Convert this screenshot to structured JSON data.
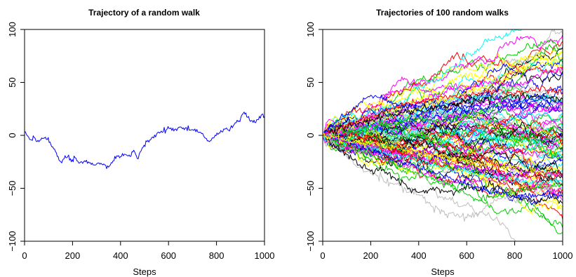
{
  "chart_data": [
    {
      "type": "line",
      "title": "Trajectory of a random walk",
      "xlabel": "Steps",
      "ylabel": "",
      "xlim": [
        0,
        1000
      ],
      "ylim": [
        -100,
        100
      ],
      "x_ticks": [
        "0",
        "200",
        "400",
        "600",
        "800",
        "1000"
      ],
      "y_ticks": [
        "−100",
        "−50",
        "0",
        "50",
        "100"
      ],
      "grid": false,
      "series": [
        {
          "color": "#0000FF",
          "points": [
            [
              0,
              3
            ],
            [
              10,
              0
            ],
            [
              25,
              -4
            ],
            [
              40,
              -2
            ],
            [
              60,
              -6
            ],
            [
              75,
              -3
            ],
            [
              95,
              -4
            ],
            [
              110,
              -9
            ],
            [
              125,
              -13
            ],
            [
              140,
              -20
            ],
            [
              155,
              -26
            ],
            [
              165,
              -22
            ],
            [
              180,
              -20
            ],
            [
              195,
              -25
            ],
            [
              210,
              -21
            ],
            [
              230,
              -26
            ],
            [
              250,
              -24
            ],
            [
              270,
              -26
            ],
            [
              290,
              -28
            ],
            [
              310,
              -26
            ],
            [
              330,
              -27
            ],
            [
              350,
              -30
            ],
            [
              365,
              -26
            ],
            [
              380,
              -22
            ],
            [
              400,
              -20
            ],
            [
              420,
              -18
            ],
            [
              440,
              -20
            ],
            [
              455,
              -14
            ],
            [
              470,
              -22
            ],
            [
              490,
              -12
            ],
            [
              510,
              -6
            ],
            [
              530,
              -2
            ],
            [
              550,
              1
            ],
            [
              570,
              4
            ],
            [
              590,
              5
            ],
            [
              610,
              7
            ],
            [
              630,
              6
            ],
            [
              650,
              8
            ],
            [
              670,
              7
            ],
            [
              690,
              5
            ],
            [
              710,
              6
            ],
            [
              730,
              3
            ],
            [
              750,
              -2
            ],
            [
              770,
              -6
            ],
            [
              790,
              -2
            ],
            [
              810,
              2
            ],
            [
              830,
              6
            ],
            [
              850,
              5
            ],
            [
              870,
              9
            ],
            [
              890,
              13
            ],
            [
              905,
              19
            ],
            [
              915,
              22
            ],
            [
              930,
              17
            ],
            [
              945,
              14
            ],
            [
              960,
              12
            ],
            [
              975,
              15
            ],
            [
              990,
              20
            ],
            [
              1000,
              18
            ]
          ]
        }
      ]
    },
    {
      "type": "line",
      "title": "Trajectories of 100 random walks",
      "xlabel": "Steps",
      "ylabel": "",
      "xlim": [
        0,
        1000
      ],
      "ylim": [
        -100,
        100
      ],
      "x_ticks": [
        "0",
        "200",
        "400",
        "600",
        "800",
        "1000"
      ],
      "y_ticks": [
        "−100",
        "−50",
        "0",
        "50",
        "100"
      ],
      "grid": false,
      "series_count": 100,
      "colors": [
        "#000000",
        "#FF0000",
        "#00CD00",
        "#0000FF",
        "#00FFFF",
        "#FF00FF",
        "#FFFF00",
        "#BEBEBE"
      ],
      "series": [
        {
          "color": "#00CD00",
          "points": [
            [
              0,
              0
            ],
            [
              100,
              3
            ],
            [
              200,
              8
            ],
            [
              300,
              12
            ],
            [
              400,
              16
            ],
            [
              500,
              14
            ],
            [
              600,
              18
            ],
            [
              700,
              24
            ],
            [
              750,
              34
            ],
            [
              800,
              48
            ],
            [
              850,
              62
            ],
            [
              900,
              74
            ],
            [
              940,
              84
            ],
            [
              970,
              80
            ],
            [
              1000,
              68
            ]
          ]
        },
        {
          "color": "#FFFF00",
          "points": [
            [
              0,
              0
            ],
            [
              100,
              6
            ],
            [
              200,
              12
            ],
            [
              300,
              20
            ],
            [
              400,
              26
            ],
            [
              500,
              34
            ],
            [
              600,
              40
            ],
            [
              700,
              48
            ],
            [
              800,
              56
            ],
            [
              860,
              68
            ],
            [
              900,
              74
            ],
            [
              950,
              72
            ],
            [
              1000,
              78
            ]
          ]
        },
        {
          "color": "#FFFF00",
          "points": [
            [
              0,
              0
            ],
            [
              100,
              8
            ],
            [
              200,
              16
            ],
            [
              300,
              24
            ],
            [
              400,
              34
            ],
            [
              500,
              42
            ],
            [
              550,
              54
            ],
            [
              600,
              58
            ],
            [
              700,
              52
            ],
            [
              800,
              60
            ],
            [
              900,
              66
            ],
            [
              1000,
              72
            ]
          ]
        },
        {
          "color": "#FF00FF",
          "points": [
            [
              0,
              0
            ],
            [
              100,
              6
            ],
            [
              200,
              14
            ],
            [
              300,
              20
            ],
            [
              400,
              30
            ],
            [
              500,
              40
            ],
            [
              550,
              48
            ],
            [
              600,
              44
            ],
            [
              700,
              50
            ],
            [
              800,
              46
            ],
            [
              900,
              56
            ],
            [
              950,
              62
            ],
            [
              1000,
              62
            ]
          ]
        },
        {
          "color": "#0000FF",
          "points": [
            [
              0,
              0
            ],
            [
              50,
              12
            ],
            [
              100,
              20
            ],
            [
              150,
              30
            ],
            [
              200,
              38
            ],
            [
              250,
              34
            ],
            [
              300,
              30
            ],
            [
              350,
              26
            ],
            [
              400,
              28
            ],
            [
              500,
              24
            ],
            [
              600,
              22
            ],
            [
              700,
              26
            ],
            [
              800,
              30
            ],
            [
              900,
              34
            ],
            [
              1000,
              30
            ]
          ]
        },
        {
          "color": "#BEBEBE",
          "points": [
            [
              0,
              0
            ],
            [
              50,
              -8
            ],
            [
              100,
              -20
            ],
            [
              150,
              -30
            ],
            [
              200,
              -36
            ],
            [
              300,
              -46
            ],
            [
              400,
              -56
            ],
            [
              450,
              -66
            ],
            [
              500,
              -72
            ],
            [
              550,
              -76
            ],
            [
              600,
              -78
            ],
            [
              650,
              -74
            ],
            [
              700,
              -64
            ],
            [
              750,
              -58
            ],
            [
              800,
              -62
            ],
            [
              850,
              -58
            ],
            [
              900,
              -54
            ],
            [
              950,
              -48
            ],
            [
              1000,
              -44
            ]
          ]
        },
        {
          "color": "#000000",
          "points": [
            [
              0,
              0
            ],
            [
              50,
              -10
            ],
            [
              100,
              -18
            ],
            [
              150,
              -28
            ],
            [
              200,
              -34
            ],
            [
              250,
              -32
            ],
            [
              300,
              -40
            ],
            [
              350,
              -48
            ],
            [
              400,
              -54
            ],
            [
              450,
              -50
            ],
            [
              500,
              -52
            ],
            [
              550,
              -54
            ],
            [
              600,
              -48
            ],
            [
              650,
              -52
            ],
            [
              700,
              -46
            ],
            [
              750,
              -52
            ],
            [
              800,
              -58
            ],
            [
              850,
              -60
            ],
            [
              900,
              -62
            ],
            [
              950,
              -58
            ],
            [
              1000,
              -64
            ]
          ]
        },
        {
          "color": "#00CD00",
          "points": [
            [
              0,
              0
            ],
            [
              100,
              -8
            ],
            [
              200,
              -18
            ],
            [
              300,
              -28
            ],
            [
              400,
              -36
            ],
            [
              500,
              -44
            ],
            [
              600,
              -56
            ],
            [
              650,
              -62
            ],
            [
              700,
              -58
            ],
            [
              800,
              -54
            ],
            [
              900,
              -50
            ],
            [
              1000,
              -46
            ]
          ]
        },
        {
          "color": "#0000FF",
          "points": [
            [
              0,
              0
            ],
            [
              100,
              -6
            ],
            [
              200,
              -14
            ],
            [
              300,
              -22
            ],
            [
              400,
              -30
            ],
            [
              500,
              -38
            ],
            [
              600,
              -46
            ],
            [
              700,
              -52
            ],
            [
              800,
              -58
            ],
            [
              900,
              -56
            ],
            [
              1000,
              -58
            ]
          ]
        },
        {
          "color": "#FF0000",
          "points": [
            [
              0,
              0
            ],
            [
              100,
              10
            ],
            [
              200,
              18
            ],
            [
              300,
              26
            ],
            [
              400,
              32
            ],
            [
              500,
              36
            ],
            [
              600,
              38
            ],
            [
              700,
              42
            ],
            [
              800,
              40
            ],
            [
              900,
              44
            ],
            [
              1000,
              40
            ]
          ]
        },
        {
          "color": "#000000",
          "points": [
            [
              0,
              0
            ],
            [
              100,
              8
            ],
            [
              200,
              14
            ],
            [
              300,
              20
            ],
            [
              400,
              24
            ],
            [
              500,
              28
            ],
            [
              600,
              32
            ],
            [
              700,
              34
            ],
            [
              800,
              38
            ],
            [
              900,
              36
            ],
            [
              1000,
              34
            ]
          ]
        },
        {
          "color": "#00FFFF",
          "points": [
            [
              0,
              0
            ],
            [
              100,
              -4
            ],
            [
              200,
              -12
            ],
            [
              300,
              -18
            ],
            [
              400,
              -24
            ],
            [
              500,
              -30
            ],
            [
              600,
              -34
            ],
            [
              700,
              -38
            ],
            [
              800,
              -42
            ],
            [
              900,
              -46
            ],
            [
              1000,
              -42
            ]
          ]
        },
        {
          "color": "#FF00FF",
          "points": [
            [
              0,
              0
            ],
            [
              100,
              -6
            ],
            [
              200,
              -10
            ],
            [
              300,
              -16
            ],
            [
              400,
              -22
            ],
            [
              500,
              -26
            ],
            [
              600,
              -30
            ],
            [
              700,
              -34
            ],
            [
              800,
              -38
            ],
            [
              900,
              -34
            ],
            [
              1000,
              -36
            ]
          ]
        },
        {
          "color": "#FFFF00",
          "points": [
            [
              0,
              0
            ],
            [
              100,
              -4
            ],
            [
              200,
              -8
            ],
            [
              300,
              -12
            ],
            [
              400,
              -16
            ],
            [
              500,
              -20
            ],
            [
              600,
              -24
            ],
            [
              700,
              -28
            ],
            [
              800,
              -30
            ],
            [
              900,
              -34
            ],
            [
              1000,
              -30
            ]
          ]
        }
      ]
    }
  ]
}
